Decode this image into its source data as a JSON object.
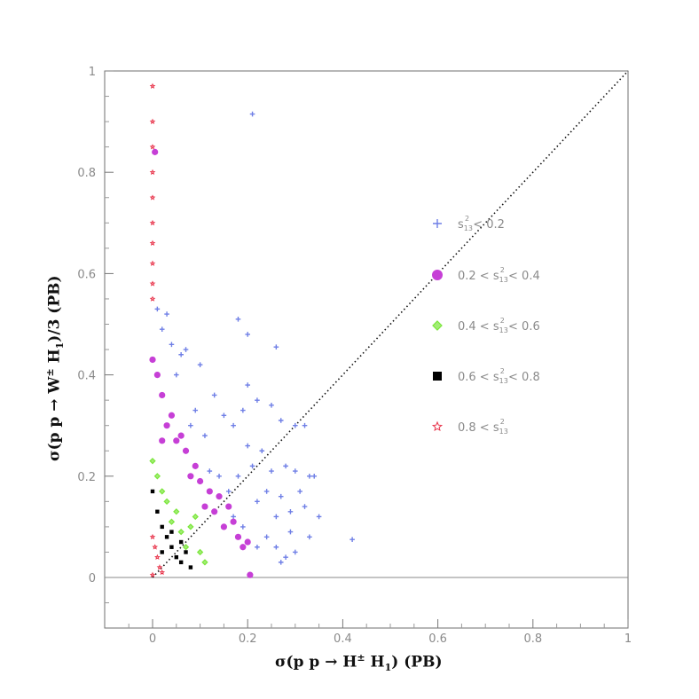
{
  "chart_data": {
    "type": "scatter",
    "xlabel_parts": [
      "σ(p p → H",
      "±",
      " H",
      "1",
      ") (PB)"
    ],
    "ylabel_parts": [
      "σ(p p → W",
      "±",
      " H",
      "1",
      ")/3 (PB)"
    ],
    "xlim": [
      -0.1,
      1.0
    ],
    "ylim": [
      -0.1,
      1.0
    ],
    "x_ticks": [
      "0",
      "0.2",
      "0.4",
      "0.6",
      "0.8",
      "1"
    ],
    "y_ticks": [
      "0",
      "0.2",
      "0.4",
      "0.6",
      "0.8",
      "1"
    ],
    "diagonal": {
      "x": [
        0,
        1
      ],
      "y": [
        0,
        1
      ],
      "style": "dotted"
    },
    "zero_line": true,
    "legend_position": "right",
    "series": [
      {
        "name_parts": [
          "s",
          "13",
          "2",
          " < 0.2"
        ],
        "marker": "cross",
        "color": "#6f7fe6"
      },
      {
        "name_parts": [
          "0.2 < s",
          "13",
          "2",
          " < 0.4"
        ],
        "marker": "circle",
        "color": "#c63fd6"
      },
      {
        "name_parts": [
          "0.4 < s",
          "13",
          "2",
          " < 0.6"
        ],
        "marker": "diamond",
        "color": "#7ae63a"
      },
      {
        "name_parts": [
          "0.6 < s",
          "13",
          "2",
          " < 0.8"
        ],
        "marker": "square",
        "color": "#000000"
      },
      {
        "name_parts": [
          "0.8 < s",
          "13",
          "2",
          ""
        ],
        "marker": "star",
        "color": "#e8334a"
      }
    ],
    "points": {
      "blue": [
        [
          0.21,
          0.915
        ],
        [
          0.18,
          0.51
        ],
        [
          0.2,
          0.48
        ],
        [
          0.26,
          0.455
        ],
        [
          0.07,
          0.45
        ],
        [
          0.03,
          0.52
        ],
        [
          0.06,
          0.44
        ],
        [
          0.1,
          0.42
        ],
        [
          0.13,
          0.36
        ],
        [
          0.15,
          0.32
        ],
        [
          0.17,
          0.3
        ],
        [
          0.19,
          0.33
        ],
        [
          0.2,
          0.38
        ],
        [
          0.22,
          0.35
        ],
        [
          0.25,
          0.34
        ],
        [
          0.27,
          0.31
        ],
        [
          0.3,
          0.3
        ],
        [
          0.32,
          0.3
        ],
        [
          0.2,
          0.26
        ],
        [
          0.23,
          0.25
        ],
        [
          0.21,
          0.22
        ],
        [
          0.25,
          0.21
        ],
        [
          0.28,
          0.22
        ],
        [
          0.3,
          0.21
        ],
        [
          0.33,
          0.2
        ],
        [
          0.34,
          0.2
        ],
        [
          0.31,
          0.17
        ],
        [
          0.27,
          0.16
        ],
        [
          0.22,
          0.15
        ],
        [
          0.26,
          0.12
        ],
        [
          0.29,
          0.13
        ],
        [
          0.32,
          0.14
        ],
        [
          0.35,
          0.12
        ],
        [
          0.33,
          0.08
        ],
        [
          0.3,
          0.05
        ],
        [
          0.28,
          0.04
        ],
        [
          0.42,
          0.075
        ],
        [
          0.24,
          0.08
        ],
        [
          0.26,
          0.06
        ],
        [
          0.22,
          0.06
        ],
        [
          0.19,
          0.1
        ],
        [
          0.17,
          0.12
        ],
        [
          0.12,
          0.21
        ],
        [
          0.14,
          0.2
        ],
        [
          0.16,
          0.17
        ],
        [
          0.09,
          0.33
        ],
        [
          0.11,
          0.28
        ],
        [
          0.08,
          0.3
        ],
        [
          0.05,
          0.4
        ],
        [
          0.04,
          0.46
        ],
        [
          0.02,
          0.49
        ],
        [
          0.01,
          0.53
        ],
        [
          0.27,
          0.03
        ],
        [
          0.29,
          0.09
        ],
        [
          0.24,
          0.17
        ],
        [
          0.18,
          0.2
        ]
      ],
      "magenta": [
        [
          0.005,
          0.84
        ],
        [
          0.0,
          0.43
        ],
        [
          0.02,
          0.36
        ],
        [
          0.04,
          0.32
        ],
        [
          0.05,
          0.27
        ],
        [
          0.07,
          0.25
        ],
        [
          0.09,
          0.22
        ],
        [
          0.08,
          0.2
        ],
        [
          0.1,
          0.19
        ],
        [
          0.12,
          0.17
        ],
        [
          0.14,
          0.16
        ],
        [
          0.16,
          0.14
        ],
        [
          0.13,
          0.13
        ],
        [
          0.11,
          0.14
        ],
        [
          0.15,
          0.1
        ],
        [
          0.17,
          0.11
        ],
        [
          0.18,
          0.08
        ],
        [
          0.19,
          0.06
        ],
        [
          0.2,
          0.07
        ],
        [
          0.205,
          0.005
        ],
        [
          0.03,
          0.3
        ],
        [
          0.06,
          0.28
        ],
        [
          0.01,
          0.4
        ],
        [
          0.02,
          0.27
        ]
      ],
      "green": [
        [
          0.0,
          0.23
        ],
        [
          0.01,
          0.2
        ],
        [
          0.02,
          0.17
        ],
        [
          0.03,
          0.15
        ],
        [
          0.05,
          0.13
        ],
        [
          0.04,
          0.11
        ],
        [
          0.06,
          0.09
        ],
        [
          0.08,
          0.1
        ],
        [
          0.07,
          0.06
        ],
        [
          0.1,
          0.05
        ],
        [
          0.11,
          0.03
        ],
        [
          0.09,
          0.12
        ]
      ],
      "black": [
        [
          0.0,
          0.17
        ],
        [
          0.01,
          0.13
        ],
        [
          0.02,
          0.1
        ],
        [
          0.03,
          0.08
        ],
        [
          0.04,
          0.06
        ],
        [
          0.05,
          0.04
        ],
        [
          0.06,
          0.03
        ],
        [
          0.07,
          0.05
        ],
        [
          0.08,
          0.02
        ],
        [
          0.06,
          0.07
        ],
        [
          0.04,
          0.09
        ],
        [
          0.02,
          0.05
        ]
      ],
      "red": [
        [
          0.0,
          0.97
        ],
        [
          0.0,
          0.9
        ],
        [
          0.0,
          0.85
        ],
        [
          0.0,
          0.8
        ],
        [
          0.0,
          0.75
        ],
        [
          0.0,
          0.7
        ],
        [
          0.0,
          0.66
        ],
        [
          0.0,
          0.62
        ],
        [
          0.0,
          0.58
        ],
        [
          0.0,
          0.55
        ],
        [
          0.0,
          0.08
        ],
        [
          0.005,
          0.06
        ],
        [
          0.01,
          0.04
        ],
        [
          0.015,
          0.02
        ],
        [
          0.02,
          0.01
        ],
        [
          0.0,
          0.005
        ]
      ]
    }
  }
}
